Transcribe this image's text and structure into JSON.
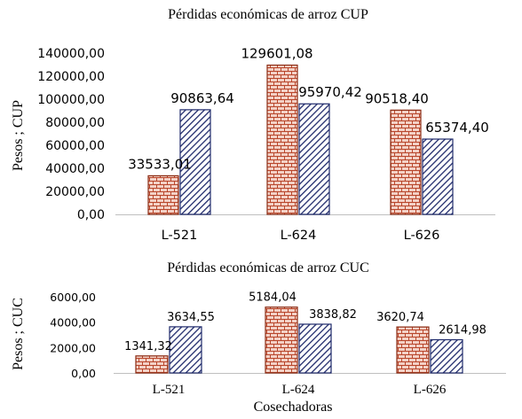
{
  "chart_data": [
    {
      "type": "bar",
      "title": "Pérdidas económicas de arroz CUP",
      "ylabel": "Pesos ; CUP",
      "xlabel": "",
      "categories": [
        "L-521",
        "L-624",
        "L-626"
      ],
      "series": [
        {
          "values": [
            33533.01,
            129601.08,
            90518.4
          ],
          "labels": [
            "33533,01",
            "129601,08",
            "90518,40"
          ],
          "pattern": "brick",
          "color": "#e8a08a",
          "stroke": "#8b2c14"
        },
        {
          "values": [
            90863.64,
            95970.42,
            65374.4
          ],
          "labels": [
            "90863,64",
            "95970,42",
            "65374,40"
          ],
          "pattern": "diagonal-hatch",
          "color": "#1f2a6b",
          "stroke": "#1f2a6b"
        }
      ],
      "ylim": [
        0,
        140000
      ],
      "yticks": [
        0,
        20000,
        40000,
        60000,
        80000,
        100000,
        120000,
        140000
      ],
      "ytick_labels": [
        "0,00",
        "20000,00",
        "40000,00",
        "60000,00",
        "80000,00",
        "100000,00",
        "120000,00",
        "140000,00"
      ],
      "grid": false,
      "legend": "none"
    },
    {
      "type": "bar",
      "title": "Pérdidas económicas de arroz CUC",
      "ylabel": "Pesos ;  CUC",
      "xlabel": "Cosechadoras",
      "categories": [
        "L-521",
        "L-624",
        "L-626"
      ],
      "series": [
        {
          "values": [
            1341.32,
            5184.04,
            3620.74
          ],
          "labels": [
            "1341,32",
            "5184,04",
            "3620,74"
          ],
          "pattern": "brick",
          "color": "#e8a08a",
          "stroke": "#8b2c14"
        },
        {
          "values": [
            3634.55,
            3838.82,
            2614.98
          ],
          "labels": [
            "3634,55",
            "3838,82",
            "2614,98"
          ],
          "pattern": "diagonal-hatch",
          "color": "#1f2a6b",
          "stroke": "#1f2a6b"
        }
      ],
      "ylim": [
        0,
        6000
      ],
      "yticks": [
        0,
        2000,
        4000,
        6000
      ],
      "ytick_labels": [
        "0,00",
        "2000,00",
        "4000,00",
        "6000,00"
      ],
      "grid": false,
      "legend": "none"
    }
  ]
}
